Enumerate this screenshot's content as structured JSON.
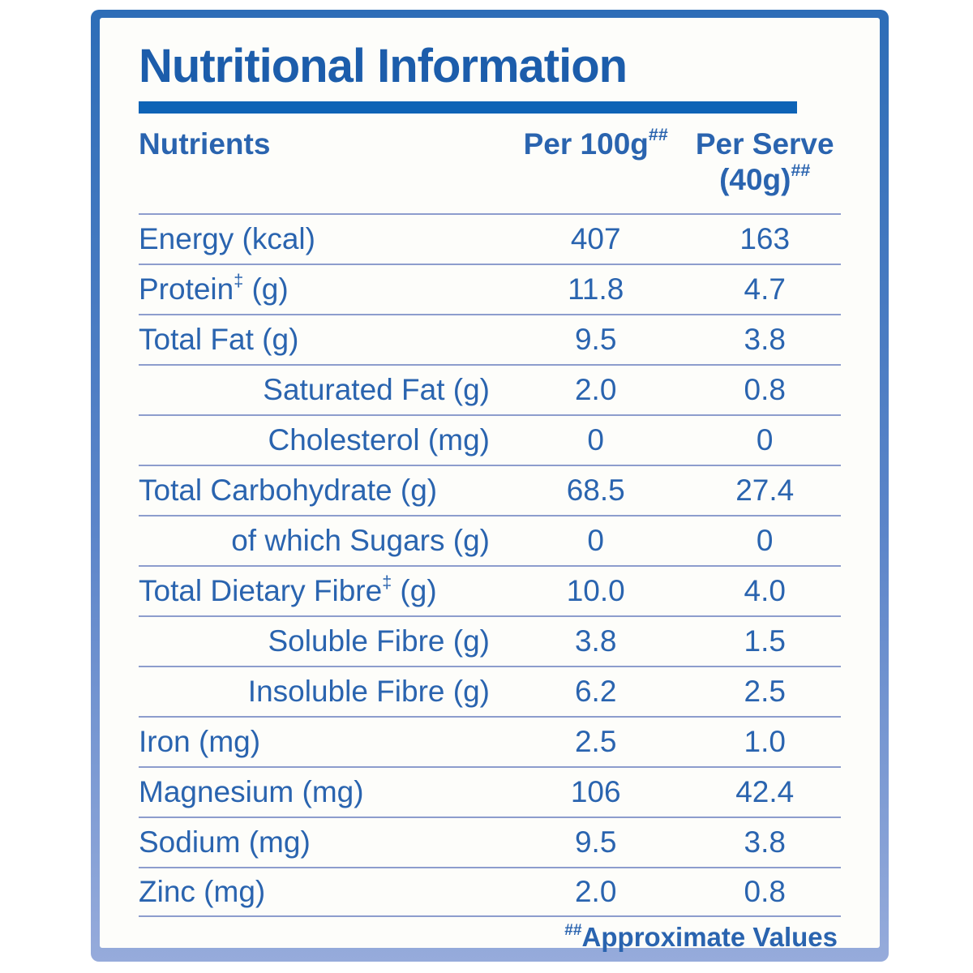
{
  "title": "Nutritional Information",
  "header": {
    "nutrients": "Nutrients",
    "per_100g": "Per 100g",
    "per_100g_sup": "##",
    "per_serve": "Per Serve",
    "per_serve_qty": "(40g)",
    "per_serve_sup": "##"
  },
  "rows": [
    {
      "label": "Energy (kcal)",
      "sup": "",
      "suffix": "",
      "indent": false,
      "per_100g": "407",
      "per_serve": "163"
    },
    {
      "label": "Protein",
      "sup": "‡",
      "suffix": " (g)",
      "indent": false,
      "per_100g": "11.8",
      "per_serve": "4.7"
    },
    {
      "label": "Total Fat (g)",
      "sup": "",
      "suffix": "",
      "indent": false,
      "per_100g": "9.5",
      "per_serve": "3.8"
    },
    {
      "label": "Saturated Fat (g)",
      "sup": "",
      "suffix": "",
      "indent": true,
      "per_100g": "2.0",
      "per_serve": "0.8"
    },
    {
      "label": "Cholesterol (mg)",
      "sup": "",
      "suffix": "",
      "indent": true,
      "per_100g": "0",
      "per_serve": "0"
    },
    {
      "label": "Total Carbohydrate (g)",
      "sup": "",
      "suffix": "",
      "indent": false,
      "per_100g": "68.5",
      "per_serve": "27.4"
    },
    {
      "label": "of which Sugars (g)",
      "sup": "",
      "suffix": "",
      "indent": true,
      "per_100g": "0",
      "per_serve": "0"
    },
    {
      "label": "Total Dietary Fibre",
      "sup": "‡",
      "suffix": " (g)",
      "indent": false,
      "per_100g": "10.0",
      "per_serve": "4.0"
    },
    {
      "label": "Soluble Fibre (g)",
      "sup": "",
      "suffix": "",
      "indent": true,
      "per_100g": "3.8",
      "per_serve": "1.5"
    },
    {
      "label": "Insoluble Fibre (g)",
      "sup": "",
      "suffix": "",
      "indent": true,
      "per_100g": "6.2",
      "per_serve": "2.5"
    },
    {
      "label": "Iron (mg)",
      "sup": "",
      "suffix": "",
      "indent": false,
      "per_100g": "2.5",
      "per_serve": "1.0"
    },
    {
      "label": "Magnesium (mg)",
      "sup": "",
      "suffix": "",
      "indent": false,
      "per_100g": "106",
      "per_serve": "42.4"
    },
    {
      "label": "Sodium (mg)",
      "sup": "",
      "suffix": "",
      "indent": false,
      "per_100g": "9.5",
      "per_serve": "3.8"
    },
    {
      "label": "Zinc (mg)",
      "sup": "",
      "suffix": "",
      "indent": false,
      "per_100g": "2.0",
      "per_serve": "0.8"
    }
  ],
  "footnote": {
    "sup": "##",
    "text": "Approximate Values"
  },
  "colors": {
    "title_blue": "#1c5dab",
    "text_blue": "#2a64af",
    "bar_blue": "#0e63b6",
    "divider": "#8d9dcd",
    "border_top": "#2d6db7",
    "border_bottom": "#96abdb"
  }
}
